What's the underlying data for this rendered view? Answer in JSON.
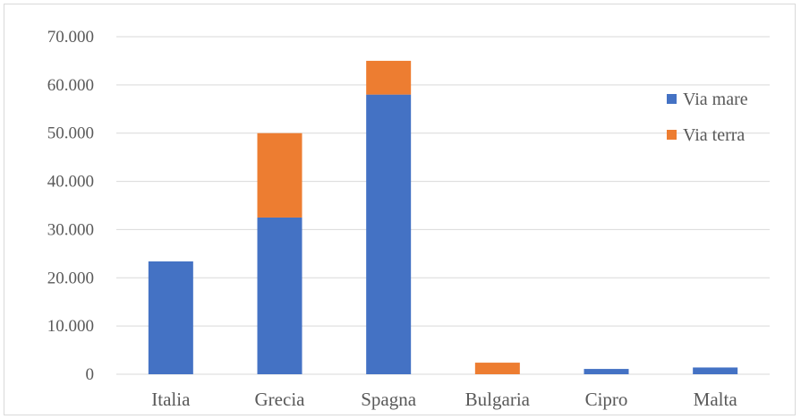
{
  "chart_data": {
    "type": "bar",
    "stacked": true,
    "categories": [
      "Italia",
      "Grecia",
      "Spagna",
      "Bulgaria",
      "Cipro",
      "Malta"
    ],
    "series": [
      {
        "name": "Via mare",
        "color": "#4472c4",
        "values": [
          23400,
          32500,
          58000,
          0,
          1100,
          1400
        ]
      },
      {
        "name": "Via terra",
        "color": "#ed7d31",
        "values": [
          0,
          17500,
          7000,
          2400,
          0,
          0
        ]
      }
    ],
    "y_ticks": [
      "0",
      "10.000",
      "20.000",
      "30.000",
      "40.000",
      "50.000",
      "60.000",
      "70.000"
    ],
    "ylim": [
      0,
      70000
    ],
    "grid": true,
    "legend_position": "right"
  }
}
